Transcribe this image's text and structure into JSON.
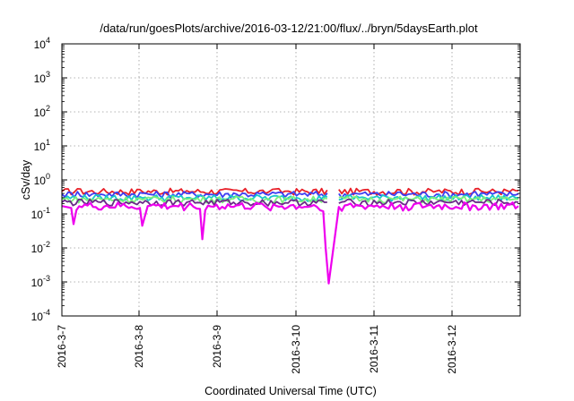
{
  "chart_data": {
    "type": "line",
    "title": "/data/run/goesPlots/archive/2016-03-12/21:00/flux/../bryn/5daysEarth.plot",
    "xlabel": "Coordinated Universal Time (UTC)",
    "ylabel": "cSv/day",
    "yscale": "log",
    "ylim": [
      0.0001,
      10000
    ],
    "xlim_days": [
      0,
      5.85
    ],
    "y_ticks": [
      {
        "base": "10",
        "exp": "-4",
        "value": 0.0001
      },
      {
        "base": "10",
        "exp": "-3",
        "value": 0.001
      },
      {
        "base": "10",
        "exp": "-2",
        "value": 0.01
      },
      {
        "base": "10",
        "exp": "-1",
        "value": 0.1
      },
      {
        "base": "10",
        "exp": "0",
        "value": 1
      },
      {
        "base": "10",
        "exp": "1",
        "value": 10
      },
      {
        "base": "10",
        "exp": "2",
        "value": 100
      },
      {
        "base": "10",
        "exp": "3",
        "value": 1000
      },
      {
        "base": "10",
        "exp": "4",
        "value": 10000
      }
    ],
    "x_ticks": [
      "2016-3-7",
      "2016-3-8",
      "2016-3-9",
      "2016-3-10",
      "2016-3-11",
      "2016-3-12"
    ],
    "grid": true,
    "series_colors": [
      "#e8212a",
      "#3d3df2",
      "#18c8c8",
      "#7cf07c",
      "#6a2a88",
      "#ee00ee"
    ],
    "series": [
      {
        "color": "#e8212a",
        "baseline": 0.46,
        "x": [
          0,
          0.2,
          0.5,
          1,
          1.6,
          2.2,
          2.65,
          2.7,
          2.9,
          3.4,
          3.85,
          4.3,
          4.8,
          5.3,
          5.85
        ],
        "y": [
          0.46,
          0.55,
          0.46,
          0.52,
          0.48,
          0.5,
          0.44,
          0.53,
          0.47,
          0.5,
          0.5,
          0.52,
          0.47,
          0.55,
          0.48
        ]
      },
      {
        "color": "#3d3df2",
        "baseline": 0.38,
        "x": [
          0,
          0.2,
          0.5,
          1,
          1.6,
          2.2,
          2.65,
          2.7,
          2.9,
          3.4,
          3.85,
          4.3,
          4.8,
          5.3,
          5.85
        ],
        "y": [
          0.38,
          0.45,
          0.38,
          0.42,
          0.4,
          0.41,
          0.36,
          0.43,
          0.39,
          0.41,
          0.4,
          0.43,
          0.38,
          0.45,
          0.39
        ]
      },
      {
        "color": "#18c8c8",
        "baseline": 0.3,
        "x": [
          0,
          0.5,
          1,
          1.6,
          2.2,
          2.9,
          3.4,
          3.85,
          4.3,
          4.8,
          5.3,
          5.85
        ],
        "y": [
          0.3,
          0.31,
          0.32,
          0.3,
          0.31,
          0.3,
          0.31,
          0.31,
          0.32,
          0.3,
          0.33,
          0.3
        ]
      },
      {
        "color": "#7cf07c",
        "baseline": 0.27,
        "x": [
          0,
          0.5,
          1,
          1.6,
          2.2,
          2.9,
          3.4,
          3.85,
          4.3,
          4.8,
          5.3,
          5.85
        ],
        "y": [
          0.27,
          0.27,
          0.28,
          0.27,
          0.28,
          0.27,
          0.28,
          0.27,
          0.28,
          0.27,
          0.28,
          0.27
        ]
      },
      {
        "color": "#6a2a88",
        "baseline": 0.22,
        "x": [
          0,
          0.5,
          1,
          1.6,
          2.2,
          2.9,
          3.4,
          3.85,
          4.3,
          4.8,
          5.3,
          5.85
        ],
        "y": [
          0.22,
          0.22,
          0.23,
          0.22,
          0.22,
          0.21,
          0.22,
          0.23,
          0.23,
          0.22,
          0.22,
          0.22
        ]
      },
      {
        "color": "#ee00ee",
        "baseline": 0.17,
        "x": [
          0,
          0.12,
          0.15,
          0.4,
          1,
          1.03,
          1.1,
          1.6,
          1.77,
          1.8,
          2.2,
          2.6,
          3.15,
          3.35,
          3.38,
          3.42,
          3.55,
          3.85,
          4.3,
          4.8,
          5.3,
          5.85
        ],
        "y": [
          0.17,
          0.15,
          0.05,
          0.16,
          0.15,
          0.045,
          0.17,
          0.16,
          0.14,
          0.018,
          0.16,
          0.17,
          0.16,
          0.12,
          0.01,
          0.0009,
          0.16,
          0.17,
          0.16,
          0.17,
          0.17,
          0.17
        ]
      }
    ]
  }
}
